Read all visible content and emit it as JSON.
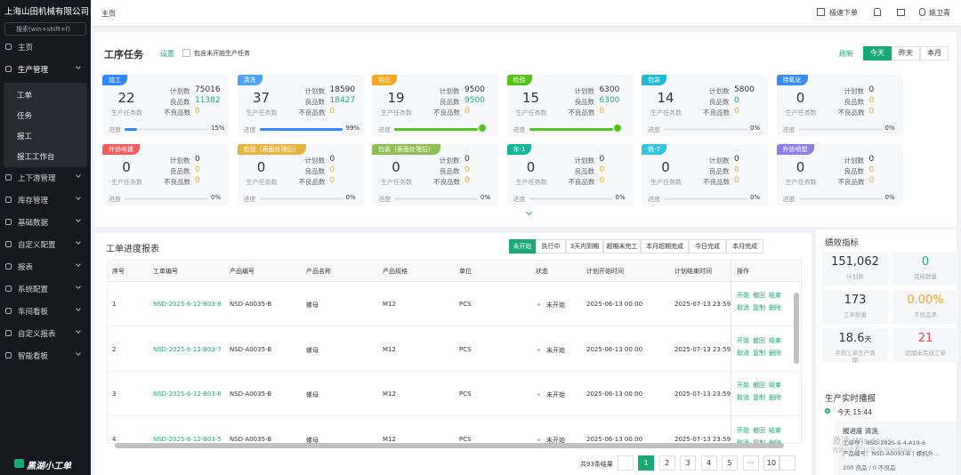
{
  "sidebar": {
    "company": "上海山田机械有限公司",
    "search": "搜索(win+shift+f)",
    "menu": [
      {
        "label": "主页"
      },
      {
        "label": "生产管理",
        "children": [
          "工单",
          "任务",
          "报工",
          "报工工作台"
        ]
      },
      {
        "label": "上下游管理"
      },
      {
        "label": "库存管理"
      },
      {
        "label": "基础数据"
      },
      {
        "label": "自定义配置"
      },
      {
        "label": "报表"
      },
      {
        "label": "系统配置"
      },
      {
        "label": "车间看板"
      },
      {
        "label": "自定义报表"
      },
      {
        "label": "智能看板"
      }
    ],
    "logo": "黑湖小工单"
  },
  "topbar": {
    "breadcrumb": "主页",
    "quick_order": "极速下单",
    "user": "姚卫青"
  },
  "tasks": {
    "title": "工序任务",
    "settings": "设置",
    "include_unstarted": "包含未开始生产任务",
    "refresh": "刷新",
    "tabs": [
      "今天",
      "昨天",
      "本月"
    ],
    "labels": {
      "plan": "计划数",
      "good": "良品数",
      "bad": "不良品数",
      "count": "生产任务数",
      "progress": "进度"
    },
    "cards": [
      {
        "tag": "加工",
        "color": "#2f88ff",
        "count": "22",
        "plan": "75016",
        "good": "11382",
        "bad": "0",
        "progress": 15,
        "progress_label": "15%"
      },
      {
        "tag": "清洗",
        "color": "#4aa3f5",
        "count": "37",
        "plan": "18590",
        "good": "18427",
        "bad": "0",
        "progress": 99,
        "progress_label": "99%"
      },
      {
        "tag": "钝化",
        "color": "#f5a623",
        "count": "19",
        "plan": "9500",
        "good": "9500",
        "bad": "0",
        "progress": 100
      },
      {
        "tag": "检验",
        "color": "#52c41a",
        "count": "15",
        "plan": "6300",
        "good": "6300",
        "bad": "0",
        "progress": 100
      },
      {
        "tag": "包装",
        "color": "#22b8d8",
        "count": "14",
        "plan": "5800",
        "good": "0",
        "bad": "0",
        "progress": 0,
        "progress_label": "0%"
      },
      {
        "tag": "待氧化",
        "color": "#3b8cf0",
        "count": "0",
        "plan": "0",
        "good": "0",
        "bad": "0",
        "progress": 0,
        "progress_label": "0%"
      },
      {
        "tag": "外协电镀",
        "color": "#f25c5c",
        "count": "0",
        "plan": "0",
        "good": "0",
        "bad": "0",
        "progress": 0,
        "progress_label": "0%"
      },
      {
        "tag": "检验（表面处理后）",
        "color": "#e6b441",
        "count": "0",
        "plan": "0",
        "good": "0",
        "bad": "0",
        "progress": 0,
        "progress_label": "0%"
      },
      {
        "tag": "包装（表面处理后）",
        "color": "#8cc152",
        "count": "0",
        "plan": "0",
        "good": "0",
        "bad": "0",
        "progress": 0,
        "progress_label": "0%"
      },
      {
        "tag": "车-1",
        "color": "#14b89c",
        "count": "0",
        "plan": "0",
        "good": "0",
        "bad": "0",
        "progress": 0,
        "progress_label": "0%"
      },
      {
        "tag": "铣-7",
        "color": "#36c5de",
        "count": "0",
        "plan": "0",
        "good": "0",
        "bad": "0",
        "progress": 0,
        "progress_label": "0%"
      },
      {
        "tag": "外协喷塑",
        "color": "#8f7ee6",
        "count": "0",
        "plan": "0",
        "good": "0",
        "bad": "0",
        "progress": 0,
        "progress_label": "0%"
      }
    ]
  },
  "report": {
    "title": "工单进度报表",
    "filters": [
      "未开始",
      "执行中",
      "3天内到期",
      "超期未完工",
      "本月超期完成",
      "今日完成",
      "本月完成"
    ],
    "columns": [
      "序号",
      "工单编号",
      "产品编号",
      "产品名称",
      "产品规格",
      "单位",
      "状态",
      "计划开始时间",
      "计划结束时间",
      "操作"
    ],
    "rows": [
      [
        "1",
        "NSD-2025-6-12-B03-8",
        "NSD-A0035-B",
        "螺母",
        "M12",
        "PCS",
        "未开始",
        "2025-06-13 00:00",
        "2025-07-13 23:59"
      ],
      [
        "2",
        "NSD-2025-6-12-B03-7",
        "NSD-A0035-B",
        "螺母",
        "M12",
        "PCS",
        "未开始",
        "2025-06-13 00:00",
        "2025-07-13 23:59"
      ],
      [
        "3",
        "NSD-2025-6-12-B03-6",
        "NSD-A0035-B",
        "螺母",
        "M12",
        "PCS",
        "未开始",
        "2025-06-13 00:00",
        "2025-07-13 23:59"
      ],
      [
        "4",
        "NSD-2025-6-12-B03-5",
        "NSD-A0035-B",
        "螺母",
        "M12",
        "PCS",
        "未开始",
        "2025-06-13 00:00",
        "2025-07-13 23:59"
      ]
    ],
    "actions": [
      "开始",
      "撤回",
      "结束",
      "取消",
      "复制",
      "删除"
    ],
    "total": "共93条结果",
    "pages": [
      "1",
      "2",
      "3",
      "4",
      "5",
      "···",
      "10"
    ]
  },
  "kpi": {
    "title": "绩效指标",
    "items": [
      {
        "value": "151,062",
        "label": "计划数"
      },
      {
        "value": "0",
        "label": "完成数量",
        "color": "#19a974"
      },
      {
        "value": "173",
        "label": "工单数量"
      },
      {
        "value": "0.00%",
        "label": "不良品率",
        "color": "#f5a623"
      },
      {
        "value": "18.6",
        "unit": "天",
        "label": "平均工单生产周期"
      },
      {
        "value": "21",
        "label": "超期未完成工单",
        "color": "#e5484d"
      }
    ]
  },
  "feed": {
    "title": "生产实时播报",
    "time": "今天 15:44",
    "event": "报进度 清洗",
    "order": "工单号：NSD-2025-6-4-A19-6",
    "product": "产品编号：NSD-A0093-B | 螺机外...",
    "result": "200 良品 / 0 不良品",
    "watermark": [
      "激活 Windows",
      "转到“设置”以激活 Windows。"
    ]
  }
}
